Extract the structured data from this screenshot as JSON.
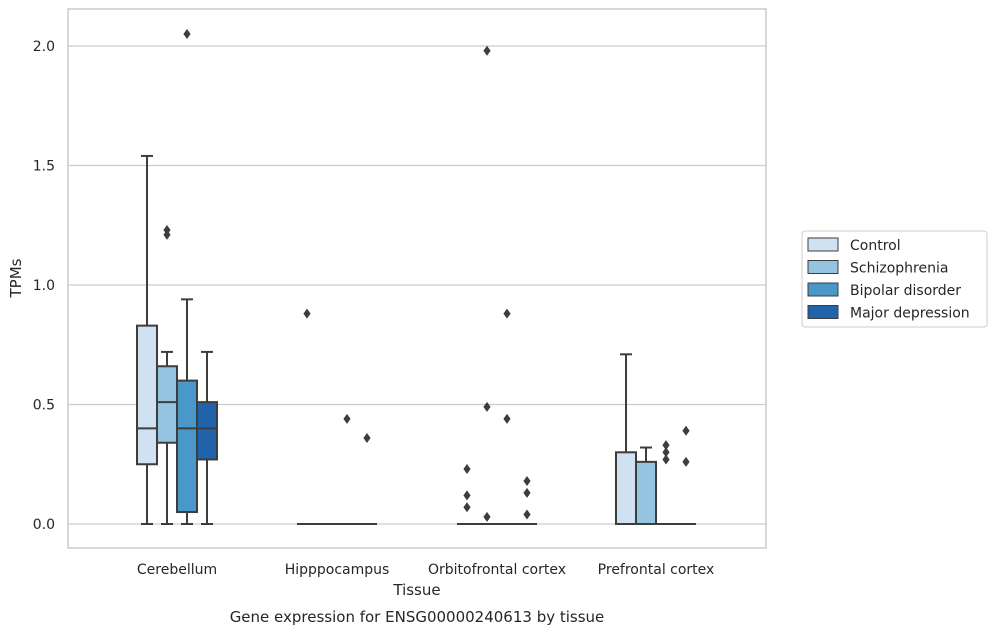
{
  "chart_data": {
    "type": "box",
    "xlabel": "Tissue",
    "ylabel": "TPMs",
    "caption": "Gene expression for ENSG00000240613 by tissue",
    "ylim": [
      -0.1,
      2.15
    ],
    "yticks": [
      "0.0",
      "0.5",
      "1.0",
      "1.5",
      "2.0"
    ],
    "grid": "horizontal",
    "legend_position": "right",
    "categories": [
      "Cerebellum",
      "Hipppocampus",
      "Orbitofrontal cortex",
      "Prefrontal cortex"
    ],
    "series": [
      {
        "name": "Control",
        "color": "#d0e1f2",
        "boxes": [
          {
            "min": 0.0,
            "q1": 0.25,
            "median": 0.4,
            "q3": 0.83,
            "max": 1.54,
            "outliers": []
          },
          {
            "min": 0.0,
            "q1": 0.0,
            "median": 0.0,
            "q3": 0.0,
            "max": 0.0,
            "outliers": [
              0.88
            ]
          },
          {
            "min": 0.0,
            "q1": 0.0,
            "median": 0.0,
            "q3": 0.0,
            "max": 0.0,
            "outliers": [
              0.23,
              0.12,
              0.07
            ]
          },
          {
            "min": 0.0,
            "q1": 0.0,
            "median": 0.0,
            "q3": 0.3,
            "max": 0.71,
            "outliers": []
          }
        ]
      },
      {
        "name": "Schizophrenia",
        "color": "#94c4df",
        "boxes": [
          {
            "min": 0.0,
            "q1": 0.34,
            "median": 0.51,
            "q3": 0.66,
            "max": 0.72,
            "outliers": [
              1.23,
              1.21
            ]
          },
          {
            "min": 0.0,
            "q1": 0.0,
            "median": 0.0,
            "q3": 0.0,
            "max": 0.0,
            "outliers": []
          },
          {
            "min": 0.0,
            "q1": 0.0,
            "median": 0.0,
            "q3": 0.0,
            "max": 0.0,
            "outliers": [
              1.98,
              0.49,
              0.03
            ]
          },
          {
            "min": 0.0,
            "q1": 0.0,
            "median": 0.0,
            "q3": 0.26,
            "max": 0.32,
            "outliers": []
          }
        ]
      },
      {
        "name": "Bipolar disorder",
        "color": "#4a98c9",
        "boxes": [
          {
            "min": 0.0,
            "q1": 0.05,
            "median": 0.4,
            "q3": 0.6,
            "max": 0.94,
            "outliers": [
              2.05
            ]
          },
          {
            "min": 0.0,
            "q1": 0.0,
            "median": 0.0,
            "q3": 0.0,
            "max": 0.0,
            "outliers": [
              0.44
            ]
          },
          {
            "min": 0.0,
            "q1": 0.0,
            "median": 0.0,
            "q3": 0.0,
            "max": 0.0,
            "outliers": [
              0.88,
              0.44
            ]
          },
          {
            "min": 0.0,
            "q1": 0.0,
            "median": 0.0,
            "q3": 0.0,
            "max": 0.0,
            "outliers": [
              0.33,
              0.3,
              0.27
            ]
          }
        ]
      },
      {
        "name": "Major depression",
        "color": "#2163aa",
        "boxes": [
          {
            "min": 0.0,
            "q1": 0.27,
            "median": 0.4,
            "q3": 0.51,
            "max": 0.72,
            "outliers": []
          },
          {
            "min": 0.0,
            "q1": 0.0,
            "median": 0.0,
            "q3": 0.0,
            "max": 0.0,
            "outliers": [
              0.36
            ]
          },
          {
            "min": 0.0,
            "q1": 0.0,
            "median": 0.0,
            "q3": 0.0,
            "max": 0.0,
            "outliers": [
              0.18,
              0.13,
              0.04
            ]
          },
          {
            "min": 0.0,
            "q1": 0.0,
            "median": 0.0,
            "q3": 0.0,
            "max": 0.0,
            "outliers": [
              0.39,
              0.26
            ]
          }
        ]
      }
    ]
  }
}
